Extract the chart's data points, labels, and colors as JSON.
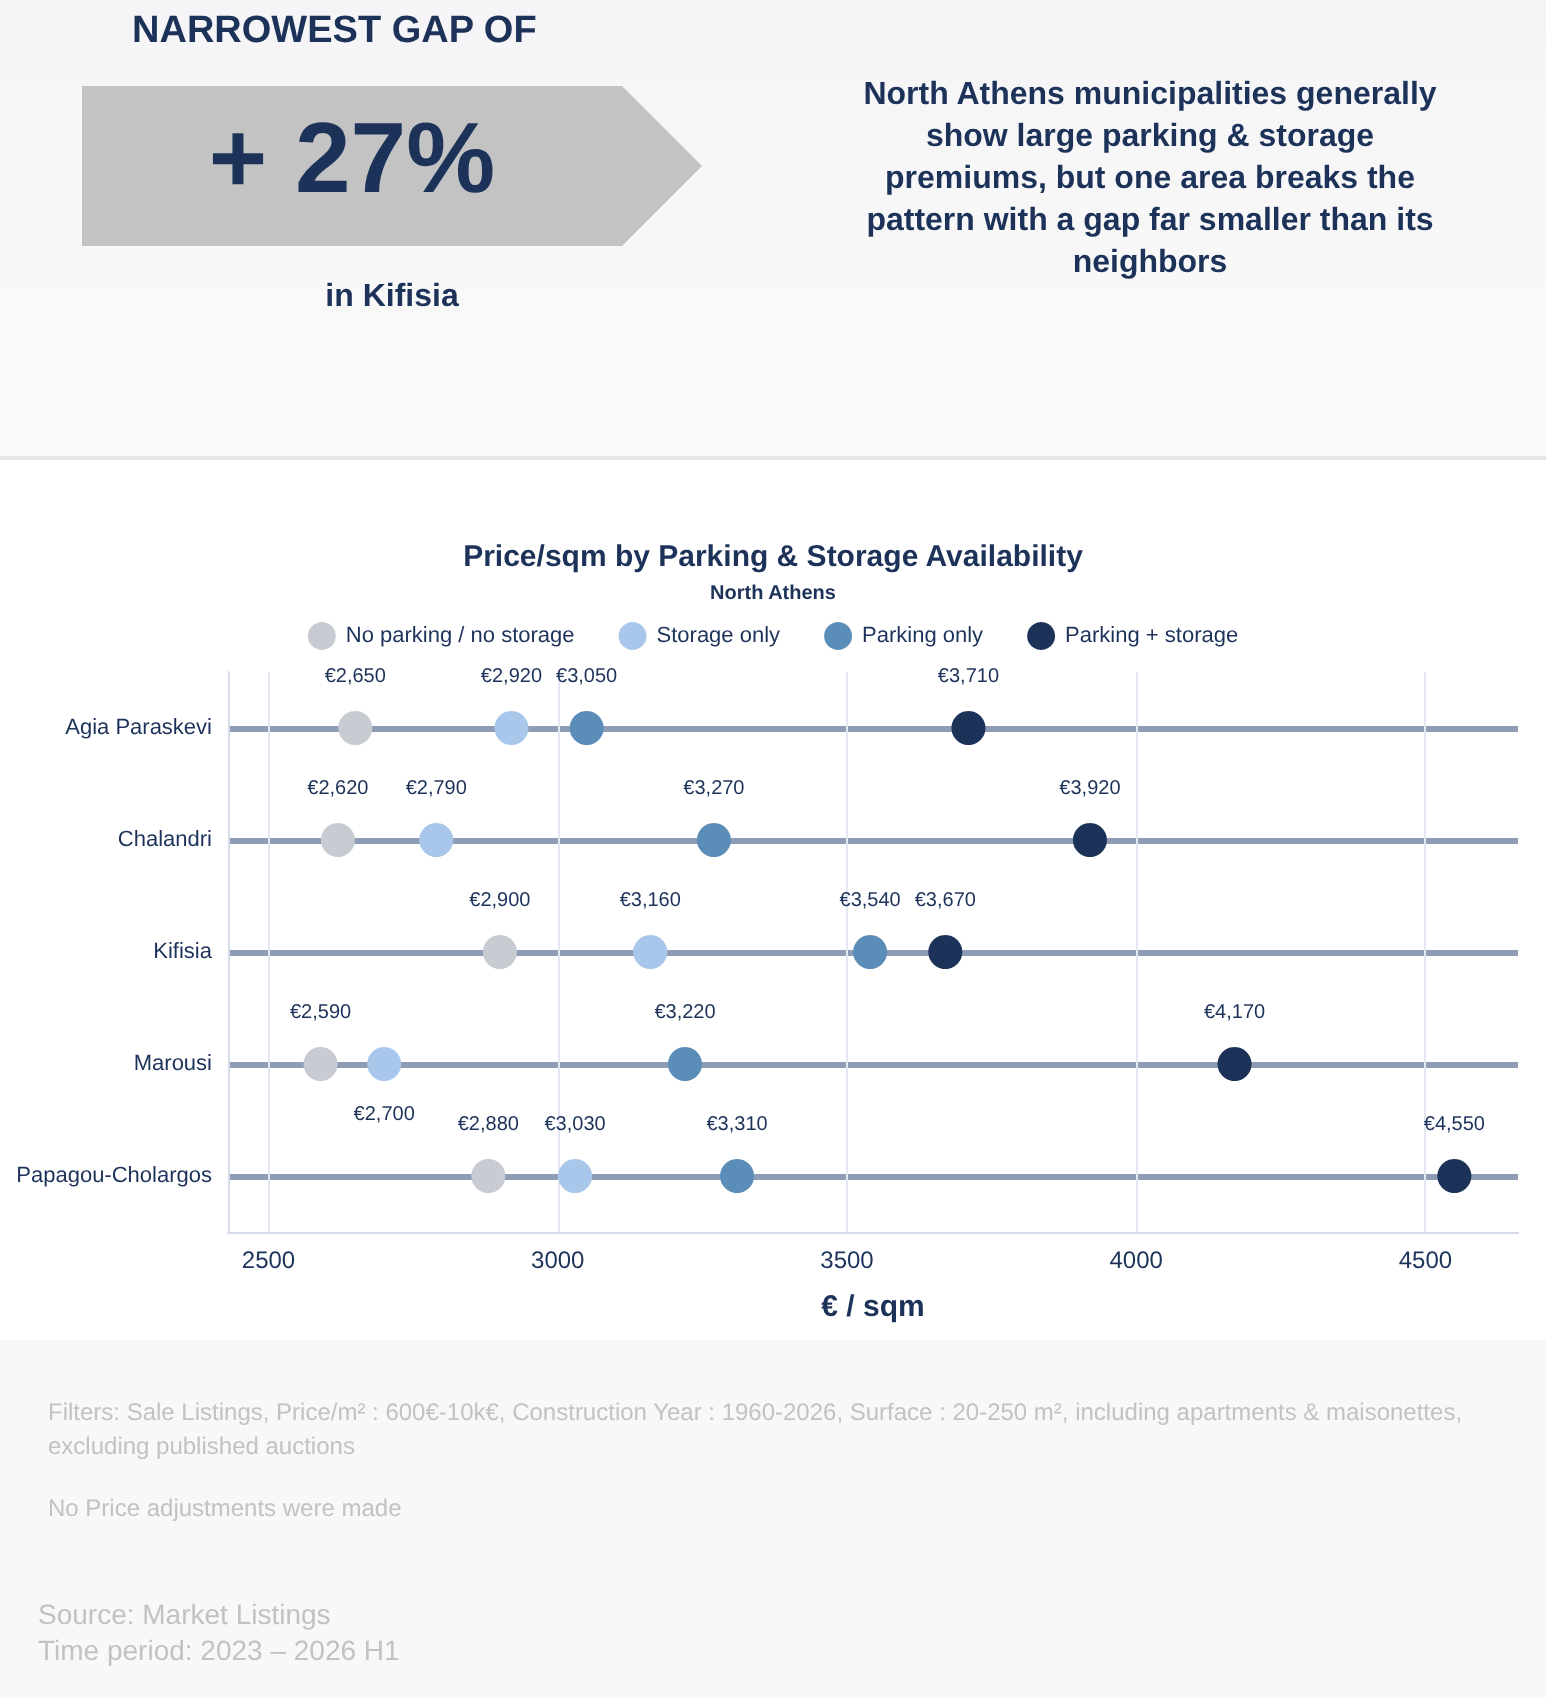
{
  "chart_data": {
    "type": "scatter",
    "orientation": "horizontal",
    "title": "Price/sqm by Parking & Storage Availability",
    "subtitle": "North Athens",
    "xlabel": "€ / sqm",
    "categories": [
      "Agia Paraskevi",
      "Chalandri",
      "Kifisia",
      "Marousi",
      "Papagou-Cholargos"
    ],
    "series": [
      {
        "name": "No parking / no storage",
        "color": "#c8cbd2",
        "values": [
          2650,
          2620,
          2900,
          2590,
          2880
        ],
        "value_labels": [
          "€2,650",
          "€2,620",
          "€2,900",
          "€2,590",
          "€2,880"
        ]
      },
      {
        "name": "Storage only",
        "color": "#a9c7ea",
        "values": [
          2920,
          2790,
          3160,
          2700,
          3030
        ],
        "value_labels": [
          "€2,920",
          "€2,790",
          "€3,160",
          "€2,700",
          "€3,030"
        ]
      },
      {
        "name": "Parking only",
        "color": "#5b8db9",
        "values": [
          3050,
          3270,
          3540,
          3220,
          3310
        ],
        "value_labels": [
          "€3,050",
          "€3,270",
          "€3,540",
          "€3,220",
          "€3,310"
        ]
      },
      {
        "name": "Parking + storage",
        "color": "#1c3259",
        "values": [
          3710,
          3920,
          3670,
          4170,
          4550
        ],
        "value_labels": [
          "€3,710",
          "€3,920",
          "€3,670",
          "€4,170",
          "€4,550"
        ]
      }
    ],
    "xlim": [
      2430,
      4660
    ],
    "xticks": [
      2500,
      3000,
      3500,
      4000,
      4500
    ],
    "grid": true,
    "legend": "top",
    "marker": "circle",
    "annotations": [
      "NARROWEST GAP OF",
      "+ 27%",
      "in Kifisia",
      "North Athens municipalities generally show large parking & storage premiums, but one area breaks the pattern with a gap far smaller than its neighbors",
      "Filters: Sale Listings, Price/m² : 600€-10k€, Construction Year : 1960-2026, Surface : 20-250 m², including apartments & maisonettes, excluding published auctions",
      "No Price adjustments were made",
      "Source:  Market Listings",
      "Time period: 2023 – 2026 H1"
    ]
  }
}
